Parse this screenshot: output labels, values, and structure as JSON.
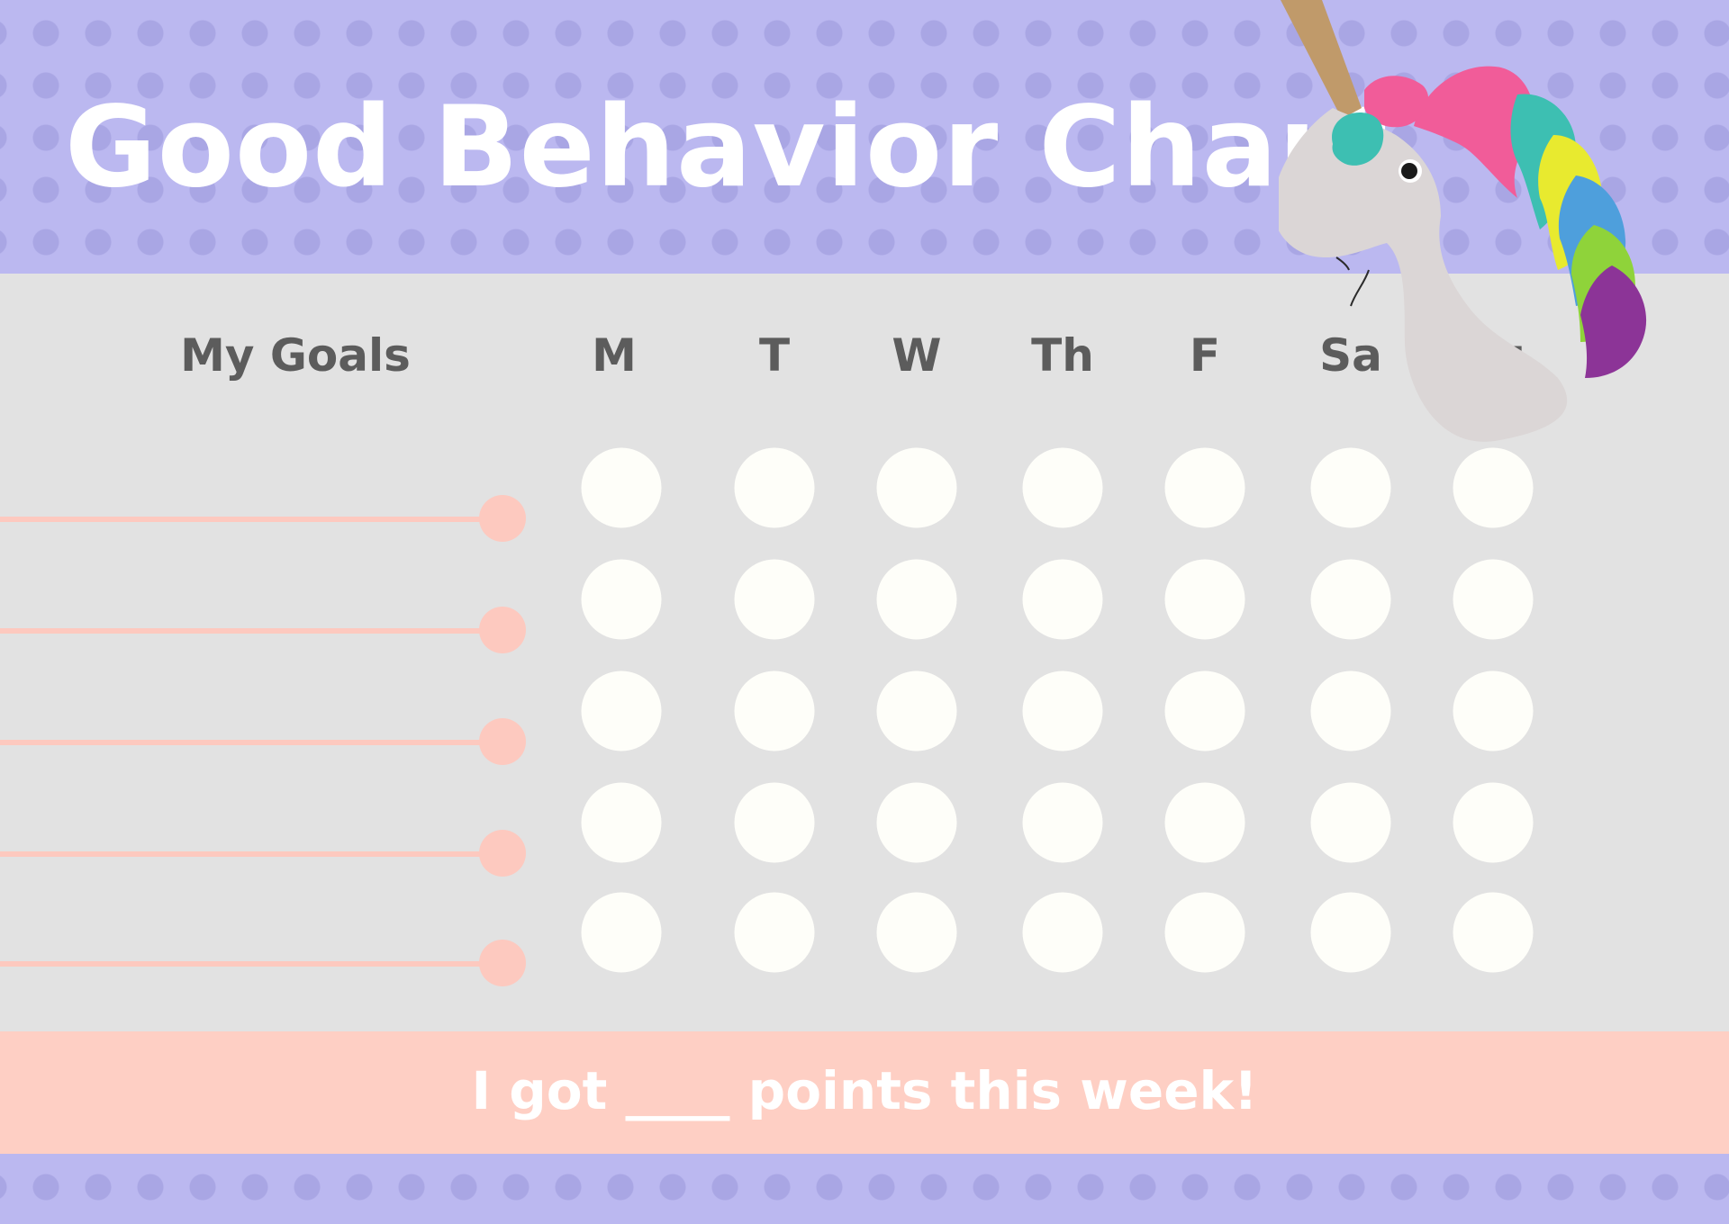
{
  "title": "Good Behavior Chart",
  "table": {
    "goals_header": "My Goals",
    "days": [
      "M",
      "T",
      "W",
      "Th",
      "F",
      "Sa",
      "Su"
    ],
    "goal_rows": 5
  },
  "footer": {
    "points_text": "I got ____ points this week!"
  },
  "icons": {
    "mascot": "unicorn-head-icon"
  },
  "colors": {
    "header_bg": "#bbb8f0",
    "header_dots": "#a9a6e4",
    "grid_bg": "#e2e2e2",
    "accent_peach": "#fdc9bf",
    "footer_bg": "#fecfc4",
    "slot_fill": "#fefef9",
    "heading_text": "#5c5c5c",
    "title_text": "#ffffff"
  }
}
